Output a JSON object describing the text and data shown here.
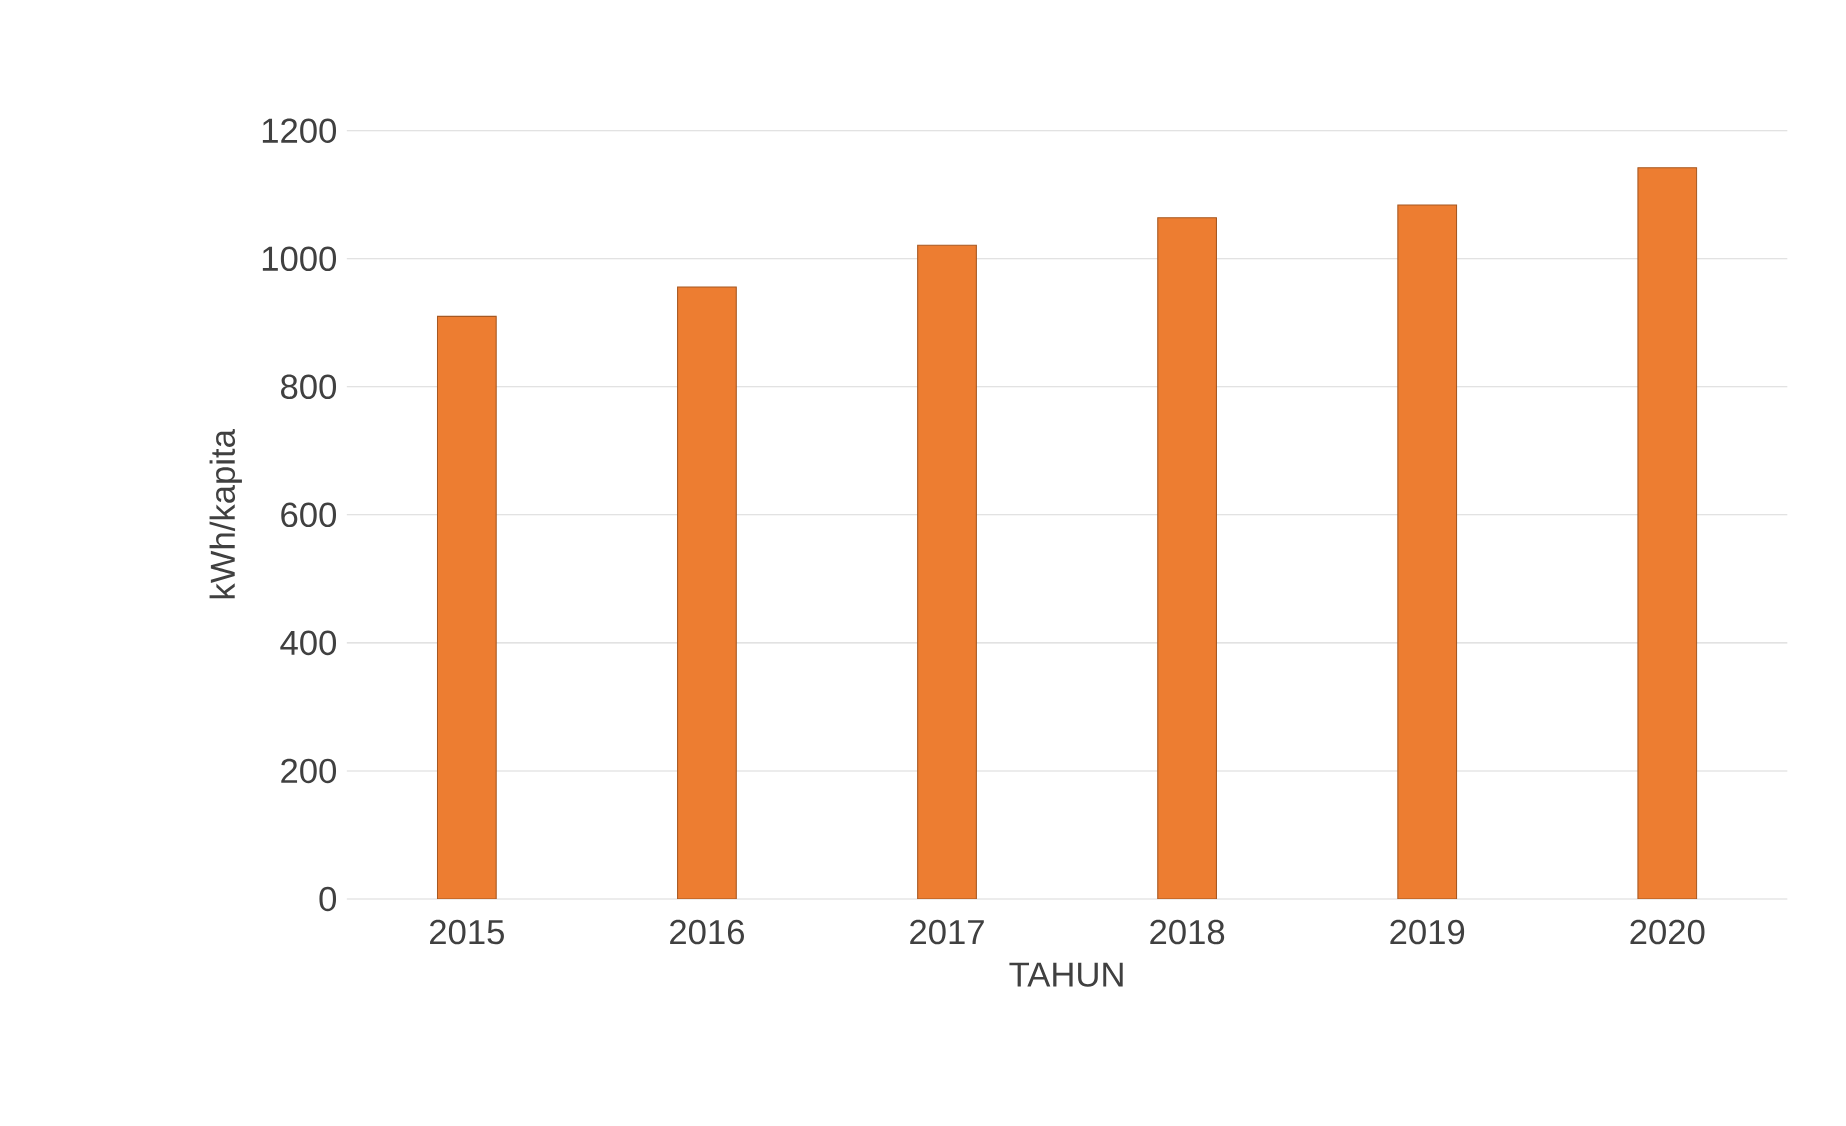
{
  "chart_data": {
    "type": "bar",
    "xlabel": "TAHUN",
    "ylabel": "kWh/kapita",
    "categories": [
      "2015",
      "2016",
      "2017",
      "2018",
      "2019",
      "2020"
    ],
    "values": [
      910,
      956,
      1021,
      1064,
      1084,
      1142
    ],
    "color": "#ed7d31",
    "ylim": [
      0,
      1200
    ],
    "yticks": [
      0,
      200,
      400,
      600,
      800,
      1000,
      1200
    ],
    "grid": "y"
  }
}
